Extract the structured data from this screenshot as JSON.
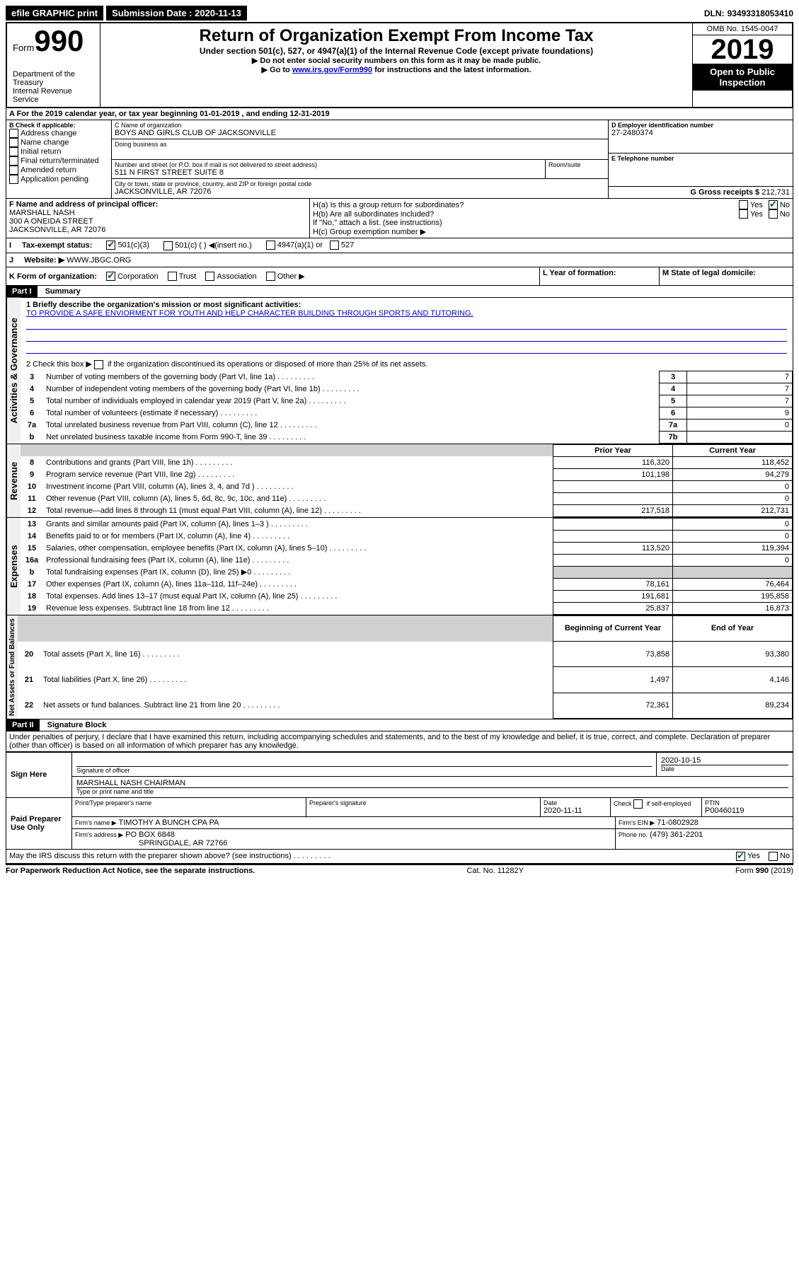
{
  "topbar": {
    "efile": "efile GRAPHIC print",
    "submission_label": "Submission Date : 2020-11-13",
    "dln_label": "DLN:",
    "dln": "93493318053410"
  },
  "header": {
    "form_prefix": "Form",
    "form_number": "990",
    "dept1": "Department of the Treasury",
    "dept2": "Internal Revenue Service",
    "title": "Return of Organization Exempt From Income Tax",
    "subtitle": "Under section 501(c), 527, or 4947(a)(1) of the Internal Revenue Code (except private foundations)",
    "instr1": "▶ Do not enter social security numbers on this form as it may be made public.",
    "instr2_pre": "▶ Go to ",
    "instr2_link": "www.irs.gov/Form990",
    "instr2_post": " for instructions and the latest information.",
    "omb": "OMB No. 1545-0047",
    "year": "2019",
    "open_public": "Open to Public Inspection"
  },
  "line_a": "A For the 2019 calendar year, or tax year beginning 01-01-2019   , and ending 12-31-2019",
  "boxB": {
    "label": "B Check if applicable:",
    "items": [
      "Address change",
      "Name change",
      "Initial return",
      "Final return/terminated",
      "Amended return",
      "Application pending"
    ]
  },
  "boxC": {
    "name_label": "C Name of organization",
    "name": "BOYS AND GIRLS CLUB OF JACKSONVILLE",
    "dba_label": "Doing business as",
    "addr_label": "Number and street (or P.O. box if mail is not delivered to street address)",
    "addr": "511 N FIRST STREET SUITE 8",
    "room_label": "Room/suite",
    "city_label": "City or town, state or province, country, and ZIP or foreign postal code",
    "city": "JACKSONVILLE, AR  72076"
  },
  "boxD": {
    "label": "D Employer identification number",
    "value": "27-2480374"
  },
  "boxE": {
    "label": "E Telephone number"
  },
  "boxG": {
    "label": "G Gross receipts $",
    "value": "212,731"
  },
  "boxF": {
    "label": "F Name and address of principal officer:",
    "name": "MARSHALL NASH",
    "addr1": "300 A ONEIDA STREET",
    "addr2": "JACKSONVILLE, AR  72076"
  },
  "boxH": {
    "ha": "H(a)  Is this a group return for subordinates?",
    "hb": "H(b)  Are all subordinates included?",
    "hb_note": "If \"No,\" attach a list. (see instructions)",
    "hc": "H(c)  Group exemption number ▶",
    "yes": "Yes",
    "no": "No"
  },
  "boxI": {
    "label": "Tax-exempt status:",
    "opts": [
      "501(c)(3)",
      "501(c) (  ) ◀(insert no.)",
      "4947(a)(1) or",
      "527"
    ]
  },
  "boxJ": {
    "label": "Website: ▶",
    "value": "WWW.JBGC.ORG"
  },
  "boxK": {
    "label": "K Form of organization:",
    "opts": [
      "Corporation",
      "Trust",
      "Association",
      "Other ▶"
    ]
  },
  "boxL": {
    "label": "L Year of formation:"
  },
  "boxM": {
    "label": "M State of legal domicile:"
  },
  "part1": {
    "header": "Part I",
    "title": "Summary",
    "line1_label": "1  Briefly describe the organization's mission or most significant activities:",
    "mission": "TO PROVIDE A SAFE ENVIORMENT FOR YOUTH AND HELP CHARACTER BUILDING THROUGH SPORTS AND TUTORING.",
    "line2": "2   Check this box ▶     if the organization discontinued its operations or disposed of more than 25% of its net assets.",
    "gov_rows": [
      {
        "n": "3",
        "desc": "Number of voting members of the governing body (Part VI, line 1a)",
        "box": "3",
        "val": "7"
      },
      {
        "n": "4",
        "desc": "Number of independent voting members of the governing body (Part VI, line 1b)",
        "box": "4",
        "val": "7"
      },
      {
        "n": "5",
        "desc": "Total number of individuals employed in calendar year 2019 (Part V, line 2a)",
        "box": "5",
        "val": "7"
      },
      {
        "n": "6",
        "desc": "Total number of volunteers (estimate if necessary)",
        "box": "6",
        "val": "9"
      },
      {
        "n": "7a",
        "desc": "Total unrelated business revenue from Part VIII, column (C), line 12",
        "box": "7a",
        "val": "0"
      },
      {
        "n": "b",
        "desc": "Net unrelated business taxable income from Form 990-T, line 39",
        "box": "7b",
        "val": ""
      }
    ],
    "col_prior": "Prior Year",
    "col_current": "Current Year",
    "col_begin": "Beginning of Current Year",
    "col_end": "End of Year",
    "revenue_rows": [
      {
        "n": "8",
        "desc": "Contributions and grants (Part VIII, line 1h)",
        "prior": "116,320",
        "cur": "118,452"
      },
      {
        "n": "9",
        "desc": "Program service revenue (Part VIII, line 2g)",
        "prior": "101,198",
        "cur": "94,279"
      },
      {
        "n": "10",
        "desc": "Investment income (Part VIII, column (A), lines 3, 4, and 7d )",
        "prior": "",
        "cur": "0"
      },
      {
        "n": "11",
        "desc": "Other revenue (Part VIII, column (A), lines 5, 6d, 8c, 9c, 10c, and 11e)",
        "prior": "",
        "cur": "0"
      },
      {
        "n": "12",
        "desc": "Total revenue—add lines 8 through 11 (must equal Part VIII, column (A), line 12)",
        "prior": "217,518",
        "cur": "212,731"
      }
    ],
    "expense_rows": [
      {
        "n": "13",
        "desc": "Grants and similar amounts paid (Part IX, column (A), lines 1–3 )",
        "prior": "",
        "cur": "0"
      },
      {
        "n": "14",
        "desc": "Benefits paid to or for members (Part IX, column (A), line 4)",
        "prior": "",
        "cur": "0"
      },
      {
        "n": "15",
        "desc": "Salaries, other compensation, employee benefits (Part IX, column (A), lines 5–10)",
        "prior": "113,520",
        "cur": "119,394"
      },
      {
        "n": "16a",
        "desc": "Professional fundraising fees (Part IX, column (A), line 11e)",
        "prior": "",
        "cur": "0"
      },
      {
        "n": "b",
        "desc": "Total fundraising expenses (Part IX, column (D), line 25) ▶0",
        "prior": "GRAY",
        "cur": "GRAY"
      },
      {
        "n": "17",
        "desc": "Other expenses (Part IX, column (A), lines 11a–11d, 11f–24e)",
        "prior": "78,161",
        "cur": "76,464"
      },
      {
        "n": "18",
        "desc": "Total expenses. Add lines 13–17 (must equal Part IX, column (A), line 25)",
        "prior": "191,681",
        "cur": "195,858"
      },
      {
        "n": "19",
        "desc": "Revenue less expenses. Subtract line 18 from line 12",
        "prior": "25,837",
        "cur": "16,873"
      }
    ],
    "net_rows": [
      {
        "n": "20",
        "desc": "Total assets (Part X, line 16)",
        "prior": "73,858",
        "cur": "93,380"
      },
      {
        "n": "21",
        "desc": "Total liabilities (Part X, line 26)",
        "prior": "1,497",
        "cur": "4,146"
      },
      {
        "n": "22",
        "desc": "Net assets or fund balances. Subtract line 21 from line 20",
        "prior": "72,361",
        "cur": "89,234"
      }
    ],
    "sec_gov": "Activities & Governance",
    "sec_rev": "Revenue",
    "sec_exp": "Expenses",
    "sec_net": "Net Assets or Fund Balances"
  },
  "part2": {
    "header": "Part II",
    "title": "Signature Block",
    "perjury": "Under penalties of perjury, I declare that I have examined this return, including accompanying schedules and statements, and to the best of my knowledge and belief, it is true, correct, and complete. Declaration of preparer (other than officer) is based on all information of which preparer has any knowledge.",
    "sign_here": "Sign Here",
    "sig_officer": "Signature of officer",
    "sig_date": "2020-10-15",
    "date_label": "Date",
    "officer_name": "MARSHALL NASH CHAIRMAN",
    "type_name": "Type or print name and title",
    "paid": "Paid Preparer Use Only",
    "prep_name_label": "Print/Type preparer's name",
    "prep_sig_label": "Preparer's signature",
    "prep_date_label": "Date",
    "prep_date": "2020-11-11",
    "check_self": "Check      if self-employed",
    "ptin_label": "PTIN",
    "ptin": "P00460119",
    "firm_name_label": "Firm's name   ▶",
    "firm_name": "TIMOTHY A BUNCH CPA PA",
    "firm_ein_label": "Firm's EIN ▶",
    "firm_ein": "71-0802928",
    "firm_addr_label": "Firm's address ▶",
    "firm_addr1": "PO BOX 6848",
    "firm_addr2": "SPRINGDALE, AR  72766",
    "phone_label": "Phone no.",
    "phone": "(479) 361-2201",
    "discuss": "May the IRS discuss this return with the preparer shown above? (see instructions)",
    "yes": "Yes",
    "no": "No"
  },
  "footer": {
    "left": "For Paperwork Reduction Act Notice, see the separate instructions.",
    "mid": "Cat. No. 11282Y",
    "right": "Form 990 (2019)"
  }
}
